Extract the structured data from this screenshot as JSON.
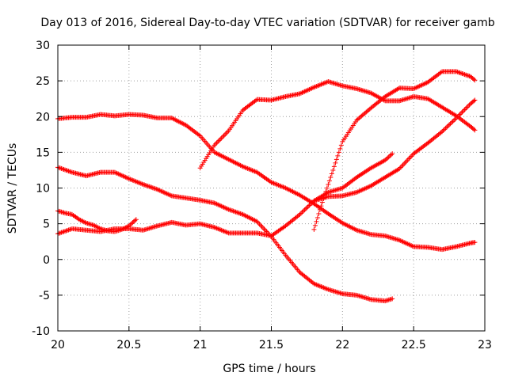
{
  "chart_data": {
    "type": "scatter",
    "title": "Day 013 of 2016, Sidereal Day-to-day VTEC variation (SDTVAR) for receiver gamb",
    "xlabel": "GPS time / hours",
    "ylabel": "SDTVAR / TECUs",
    "xlim": [
      20,
      23
    ],
    "ylim": [
      -10,
      30
    ],
    "xticks": [
      20,
      20.5,
      21,
      21.5,
      22,
      22.5,
      23
    ],
    "xtick_labels": [
      "20",
      "20.5",
      "21",
      "21.5",
      "22",
      "22.5",
      "23"
    ],
    "yticks": [
      -10,
      -5,
      0,
      5,
      10,
      15,
      20,
      25,
      30
    ],
    "ytick_labels": [
      "-10",
      "-5",
      "0",
      "5",
      "10",
      "15",
      "20",
      "25",
      "30"
    ],
    "grid": true,
    "marker": "+",
    "color": "#ff0000",
    "series": [
      {
        "x": [
          20.0,
          20.1,
          20.2,
          20.3,
          20.4,
          20.5,
          20.6,
          20.7,
          20.8,
          20.9,
          21.0,
          21.1,
          21.2,
          21.3,
          21.4,
          21.5,
          21.6,
          21.7,
          21.8,
          21.9,
          22.0,
          22.1,
          22.2,
          22.3,
          22.4,
          22.5,
          22.6,
          22.7,
          22.8,
          22.9,
          22.93
        ],
        "y": [
          19.7,
          19.9,
          19.9,
          20.3,
          20.1,
          20.3,
          20.2,
          19.8,
          19.8,
          18.8,
          17.3,
          15.0,
          14.0,
          13.0,
          12.2,
          10.8,
          10.0,
          9.0,
          7.8,
          6.4,
          5.1,
          4.1,
          3.5,
          3.3,
          2.7,
          1.8,
          1.7,
          1.4,
          1.8,
          2.3,
          2.4
        ]
      },
      {
        "x": [
          20.0,
          20.1,
          20.2,
          20.3,
          20.4,
          20.5,
          20.6,
          20.7,
          20.8,
          20.9,
          21.0,
          21.1,
          21.2,
          21.3,
          21.4,
          21.5,
          21.6,
          21.7,
          21.8,
          21.9,
          22.0,
          22.1,
          22.2,
          22.3,
          22.35
        ],
        "y": [
          12.9,
          12.2,
          11.7,
          12.2,
          12.2,
          11.3,
          10.5,
          9.8,
          8.9,
          8.6,
          8.3,
          7.9,
          7.0,
          6.3,
          5.3,
          3.2,
          0.6,
          -1.8,
          -3.4,
          -4.2,
          -4.8,
          -5.0,
          -5.6,
          -5.8,
          -5.5
        ]
      },
      {
        "x": [
          20.0,
          20.05,
          20.1,
          20.15,
          20.2,
          20.25,
          20.3,
          20.35,
          20.4,
          20.45,
          20.5,
          20.55
        ],
        "y": [
          6.8,
          6.5,
          6.3,
          5.6,
          5.1,
          4.8,
          4.3,
          4.0,
          3.9,
          4.2,
          4.7,
          5.6
        ]
      },
      {
        "x": [
          20.0,
          20.1,
          20.2,
          20.3,
          20.4,
          20.5,
          20.6,
          20.7,
          20.8,
          20.9,
          21.0,
          21.1,
          21.2,
          21.3,
          21.4,
          21.5,
          21.6,
          21.7,
          21.8,
          21.9,
          22.0,
          22.1,
          22.2,
          22.3,
          22.35
        ],
        "y": [
          3.6,
          4.3,
          4.1,
          3.9,
          4.3,
          4.3,
          4.1,
          4.7,
          5.2,
          4.8,
          5.0,
          4.5,
          3.7,
          3.7,
          3.7,
          3.3,
          4.7,
          6.3,
          8.2,
          9.4,
          10.0,
          11.5,
          12.8,
          13.9,
          14.8
        ]
      },
      {
        "x": [
          21.0,
          21.05,
          21.1,
          21.2,
          21.3,
          21.4,
          21.5,
          21.6,
          21.7,
          21.8,
          21.9,
          22.0,
          22.1,
          22.2,
          22.3,
          22.4,
          22.5,
          22.6,
          22.7,
          22.8,
          22.9,
          22.93
        ],
        "y": [
          12.8,
          14.4,
          16.0,
          18.0,
          20.9,
          22.4,
          22.3,
          22.8,
          23.2,
          24.1,
          24.9,
          24.3,
          23.9,
          23.3,
          22.2,
          22.2,
          22.8,
          22.5,
          21.3,
          20.1,
          18.6,
          18.1
        ]
      },
      {
        "x": [
          21.8,
          21.85,
          21.9,
          21.95,
          22.0,
          22.1,
          22.2,
          22.3,
          22.4,
          22.5,
          22.6,
          22.7,
          22.8,
          22.9,
          22.93
        ],
        "y": [
          4.2,
          7.5,
          10.5,
          13.5,
          16.5,
          19.5,
          21.2,
          22.8,
          24.0,
          23.9,
          24.8,
          26.3,
          26.3,
          25.6,
          25.1
        ]
      },
      {
        "x": [
          21.8,
          21.9,
          22.0,
          22.1,
          22.2,
          22.3,
          22.4,
          22.5,
          22.6,
          22.7,
          22.8,
          22.9,
          22.93
        ],
        "y": [
          8.2,
          8.8,
          8.9,
          9.4,
          10.3,
          11.5,
          12.7,
          14.8,
          16.3,
          17.9,
          19.8,
          21.8,
          22.3
        ]
      }
    ]
  }
}
